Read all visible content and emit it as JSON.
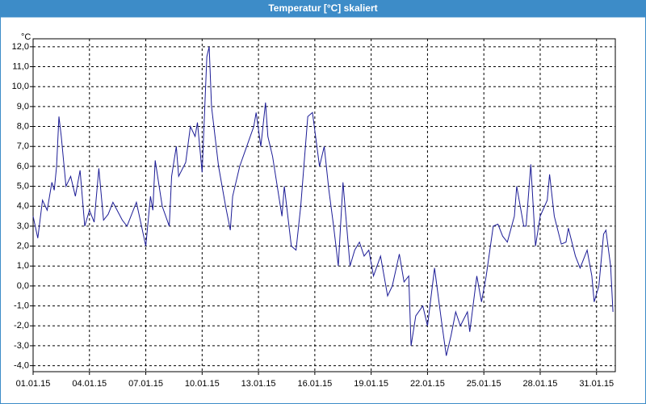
{
  "chart_data": {
    "type": "line",
    "title": "Temperatur [°C] skaliert",
    "y_unit": "°C",
    "color": "#1c1c96",
    "grid": true,
    "ylim": [
      -4.3,
      12.4
    ],
    "yticks": [
      {
        "value": 12,
        "label": "12,0"
      },
      {
        "value": 11,
        "label": "11,0"
      },
      {
        "value": 10,
        "label": "10,0"
      },
      {
        "value": 9,
        "label": "9,0"
      },
      {
        "value": 8,
        "label": "8,0"
      },
      {
        "value": 7,
        "label": "7,0"
      },
      {
        "value": 6,
        "label": "6,0"
      },
      {
        "value": 5,
        "label": "5,0"
      },
      {
        "value": 4,
        "label": "4,0"
      },
      {
        "value": 3,
        "label": "3,0"
      },
      {
        "value": 2,
        "label": "2,0"
      },
      {
        "value": 1,
        "label": "1,0"
      },
      {
        "value": 0,
        "label": "0,0"
      },
      {
        "value": -1,
        "label": "-1,0"
      },
      {
        "value": -2,
        "label": "-2,0"
      },
      {
        "value": -3,
        "label": "-3,0"
      },
      {
        "value": -4,
        "label": "-4,0"
      }
    ],
    "xlim": [
      "2015-01-01T00:00",
      "2015-02-01T00:00"
    ],
    "xticks": [
      {
        "value": "2015-01-01T00:00",
        "label": "01.01.15"
      },
      {
        "value": "2015-01-04T00:00",
        "label": "04.01.15"
      },
      {
        "value": "2015-01-07T00:00",
        "label": "07.01.15"
      },
      {
        "value": "2015-01-10T00:00",
        "label": "10.01.15"
      },
      {
        "value": "2015-01-13T00:00",
        "label": "13.01.15"
      },
      {
        "value": "2015-01-16T00:00",
        "label": "16.01.15"
      },
      {
        "value": "2015-01-19T00:00",
        "label": "19.01.15"
      },
      {
        "value": "2015-01-22T00:00",
        "label": "22.01.15"
      },
      {
        "value": "2015-01-25T00:00",
        "label": "25.01.15"
      },
      {
        "value": "2015-01-28T00:00",
        "label": "28.01.15"
      },
      {
        "value": "2015-01-31T00:00",
        "label": "31.01.15"
      }
    ],
    "x": [
      "2015-01-01T00:00",
      "2015-01-01T06:00",
      "2015-01-01T12:00",
      "2015-01-01T18:00",
      "2015-01-02T00:00",
      "2015-01-02T03:00",
      "2015-01-02T06:00",
      "2015-01-02T09:00",
      "2015-01-02T12:00",
      "2015-01-02T18:00",
      "2015-01-03T00:00",
      "2015-01-03T06:00",
      "2015-01-03T12:00",
      "2015-01-03T18:00",
      "2015-01-04T00:00",
      "2015-01-04T06:00",
      "2015-01-04T12:00",
      "2015-01-04T18:00",
      "2015-01-05T00:00",
      "2015-01-05T06:00",
      "2015-01-05T18:00",
      "2015-01-06T00:00",
      "2015-01-06T12:00",
      "2015-01-07T00:00",
      "2015-01-07T06:00",
      "2015-01-07T09:00",
      "2015-01-07T12:00",
      "2015-01-07T21:00",
      "2015-01-08T06:00",
      "2015-01-08T09:00",
      "2015-01-08T15:00",
      "2015-01-08T18:00",
      "2015-01-09T03:00",
      "2015-01-09T09:00",
      "2015-01-09T15:00",
      "2015-01-09T18:00",
      "2015-01-10T00:00",
      "2015-01-10T06:00",
      "2015-01-10T09:00",
      "2015-01-10T12:00",
      "2015-01-10T21:00",
      "2015-01-11T06:00",
      "2015-01-11T12:00",
      "2015-01-11T15:00",
      "2015-01-12T00:00",
      "2015-01-12T09:00",
      "2015-01-12T18:00",
      "2015-01-12T21:00",
      "2015-01-13T03:00",
      "2015-01-13T09:00",
      "2015-01-13T12:00",
      "2015-01-13T18:00",
      "2015-01-14T06:00",
      "2015-01-14T09:00",
      "2015-01-14T18:00",
      "2015-01-15T00:00",
      "2015-01-15T06:00",
      "2015-01-15T15:00",
      "2015-01-15T21:00",
      "2015-01-16T06:00",
      "2015-01-16T12:00",
      "2015-01-16T18:00",
      "2015-01-17T00:00",
      "2015-01-17T06:00",
      "2015-01-17T12:00",
      "2015-01-17T21:00",
      "2015-01-18T03:00",
      "2015-01-18T09:00",
      "2015-01-18T15:00",
      "2015-01-18T21:00",
      "2015-01-19T03:00",
      "2015-01-19T12:00",
      "2015-01-19T21:00",
      "2015-01-20T03:00",
      "2015-01-20T12:00",
      "2015-01-20T18:00",
      "2015-01-21T00:00",
      "2015-01-21T03:00",
      "2015-01-21T09:00",
      "2015-01-21T18:00",
      "2015-01-22T00:00",
      "2015-01-22T09:00",
      "2015-01-22T18:00",
      "2015-01-23T00:00",
      "2015-01-23T06:00",
      "2015-01-23T12:00",
      "2015-01-23T18:00",
      "2015-01-24T03:00",
      "2015-01-24T06:00",
      "2015-01-24T15:00",
      "2015-01-24T21:00",
      "2015-01-25T03:00",
      "2015-01-25T12:00",
      "2015-01-25T18:00",
      "2015-01-26T00:00",
      "2015-01-26T06:00",
      "2015-01-26T15:00",
      "2015-01-26T18:00",
      "2015-01-27T03:00",
      "2015-01-27T06:00",
      "2015-01-27T12:00",
      "2015-01-27T18:00",
      "2015-01-28T00:00",
      "2015-01-28T09:00",
      "2015-01-28T12:00",
      "2015-01-28T18:00",
      "2015-01-29T03:00",
      "2015-01-29T09:00",
      "2015-01-29T12:00",
      "2015-01-29T21:00",
      "2015-01-30T03:00",
      "2015-01-30T12:00",
      "2015-01-30T18:00",
      "2015-01-30T21:00",
      "2015-01-31T03:00",
      "2015-01-31T09:00",
      "2015-01-31T12:00",
      "2015-01-31T18:00",
      "2015-01-31T21:00"
    ],
    "values": [
      3.5,
      2.4,
      4.3,
      3.8,
      5.2,
      4.8,
      6.0,
      8.5,
      7.5,
      5.0,
      5.5,
      4.5,
      5.8,
      3.0,
      3.8,
      3.2,
      5.9,
      3.3,
      3.6,
      4.2,
      3.3,
      3.0,
      4.2,
      2.0,
      4.5,
      3.8,
      6.3,
      4.0,
      3.0,
      5.5,
      7.0,
      5.5,
      6.2,
      8.0,
      7.5,
      8.2,
      5.7,
      11.5,
      12.0,
      9.0,
      6.0,
      4.0,
      2.8,
      4.5,
      6.0,
      7.0,
      8.0,
      8.7,
      7.0,
      9.2,
      7.5,
      6.5,
      3.5,
      5.0,
      2.0,
      1.8,
      4.0,
      8.5,
      8.7,
      6.0,
      7.0,
      4.8,
      3.0,
      1.0,
      5.2,
      1.0,
      1.8,
      2.2,
      1.5,
      1.8,
      0.5,
      1.5,
      -0.5,
      0.0,
      1.6,
      0.2,
      0.5,
      -3.0,
      -1.5,
      -1.0,
      -2.0,
      0.9,
      -1.8,
      -3.5,
      -2.5,
      -1.3,
      -2.0,
      -1.3,
      -2.3,
      0.5,
      -0.8,
      0.5,
      3.0,
      3.1,
      2.5,
      2.2,
      3.5,
      5.0,
      3.0,
      3.0,
      6.1,
      2.0,
      3.5,
      4.3,
      5.6,
      3.5,
      2.1,
      2.2,
      2.9,
      1.5,
      0.9,
      1.8,
      0.5,
      -0.8,
      0.0,
      2.6,
      2.8,
      1.0,
      -1.3
    ]
  }
}
